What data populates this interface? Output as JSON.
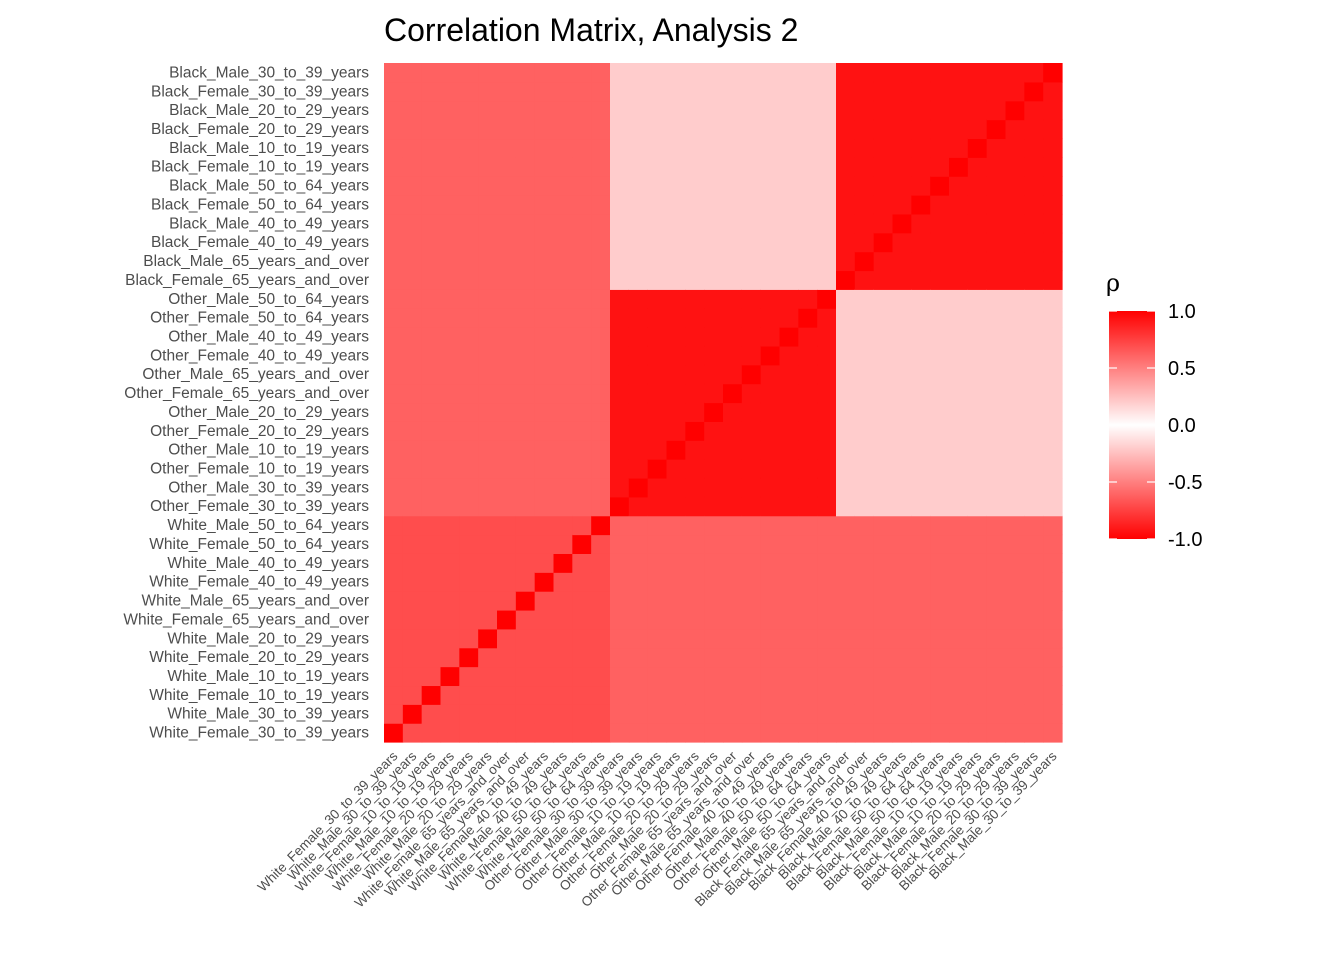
{
  "chart_data": {
    "type": "heatmap",
    "title": "Correlation Matrix, Analysis 2",
    "legend": {
      "title": "ρ",
      "ticks": [
        1.0,
        0.5,
        0.0,
        -0.5,
        -1.0
      ],
      "tick_labels": [
        "1.0",
        "0.5",
        "0.0",
        "-0.5",
        "-1.0"
      ],
      "placement": "right"
    },
    "colors": {
      "high": "#ff0000",
      "mid": "#ffffff",
      "low": "#ff0000"
    },
    "value_range": [
      -1,
      1
    ],
    "variables": [
      "White_Female_30_to_39_years",
      "White_Male_30_to_39_years",
      "White_Female_10_to_19_years",
      "White_Male_10_to_19_years",
      "White_Female_20_to_29_years",
      "White_Male_20_to_29_years",
      "White_Female_65_years_and_over",
      "White_Male_65_years_and_over",
      "White_Female_40_to_49_years",
      "White_Male_40_to_49_years",
      "White_Female_50_to_64_years",
      "White_Male_50_to_64_years",
      "Other_Female_30_to_39_years",
      "Other_Male_30_to_39_years",
      "Other_Female_10_to_19_years",
      "Other_Male_10_to_19_years",
      "Other_Female_20_to_29_years",
      "Other_Male_20_to_29_years",
      "Other_Female_65_years_and_over",
      "Other_Male_65_years_and_over",
      "Other_Female_40_to_49_years",
      "Other_Male_40_to_49_years",
      "Other_Female_50_to_64_years",
      "Other_Male_50_to_64_years",
      "Black_Female_65_years_and_over",
      "Black_Male_65_years_and_over",
      "Black_Female_40_to_49_years",
      "Black_Male_40_to_49_years",
      "Black_Female_50_to_64_years",
      "Black_Male_50_to_64_years",
      "Black_Female_10_to_19_years",
      "Black_Male_10_to_19_years",
      "Black_Female_20_to_29_years",
      "Black_Male_20_to_29_years",
      "Black_Female_30_to_39_years",
      "Black_Male_30_to_39_years"
    ],
    "block_ranges": [
      [
        0,
        11
      ],
      [
        12,
        23
      ],
      [
        24,
        35
      ]
    ],
    "block_correlations": [
      [
        0.7,
        0.62,
        0.62
      ],
      [
        0.62,
        0.93,
        0.2
      ],
      [
        0.62,
        0.2,
        0.93
      ]
    ]
  }
}
